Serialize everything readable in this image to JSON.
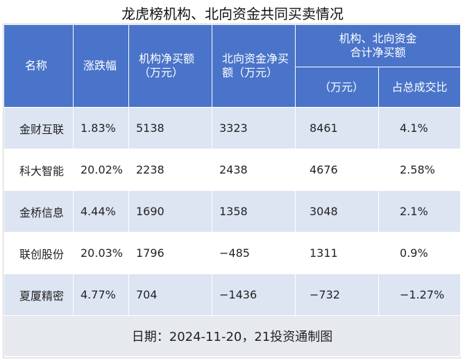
{
  "title": "龙虎榜机构、北向资金共同买卖情况",
  "headers": {
    "name": "名称",
    "change": "涨跌幅",
    "inst_net": "机构净买额\n（万元）",
    "north_net": "北向资金净买\n额（万元）",
    "combined_group": "机构、北向资金\n合计净买额",
    "combined_unit": "（万元）",
    "share": "占总成交比"
  },
  "rows": [
    {
      "name": "金财互联",
      "change": "1.83%",
      "inst_net": "5138",
      "north_net": "3323",
      "combined": "8461",
      "share": "4.1%"
    },
    {
      "name": "科大智能",
      "change": "20.02%",
      "inst_net": "2238",
      "north_net": "2438",
      "combined": "4676",
      "share": "2.58%"
    },
    {
      "name": "金桥信息",
      "change": "4.44%",
      "inst_net": "1690",
      "north_net": "1358",
      "combined": "3048",
      "share": "2.1%"
    },
    {
      "name": "联创股份",
      "change": "20.03%",
      "inst_net": "1796",
      "north_net": "−485",
      "combined": "1311",
      "share": "0.9%"
    },
    {
      "name": "夏厦精密",
      "change": "4.77%",
      "inst_net": "704",
      "north_net": "−1436",
      "combined": "−732",
      "share": "−1.27%"
    }
  ],
  "footer": "日期：2024-11-20，21投资通制图"
}
